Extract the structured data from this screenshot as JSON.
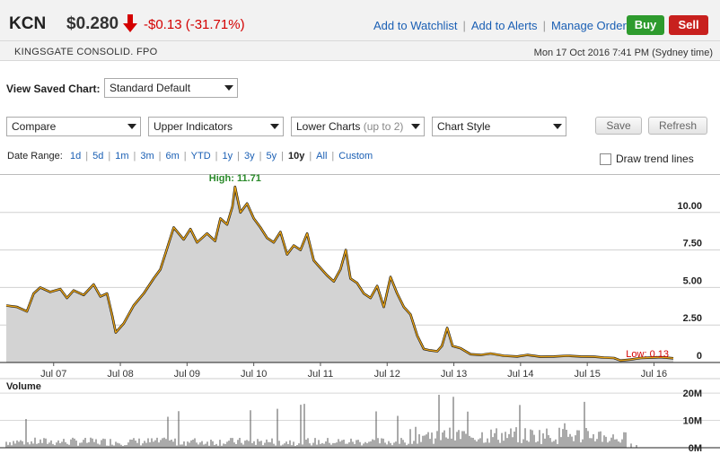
{
  "quote": {
    "ticker": "KCN",
    "price": "$0.280",
    "change": "-$0.13 (-31.71%)",
    "company": "KINGSGATE CONSOLID. FPO",
    "datetime": "Mon 17 Oct 2016 7:41 PM (Sydney time)"
  },
  "header_links": [
    "Add to Watchlist",
    "Add to Alerts",
    "Manage Orders"
  ],
  "actions": {
    "buy": "Buy",
    "sell": "Sell"
  },
  "saved_chart": {
    "label": "View Saved Chart:",
    "value": "Standard Default"
  },
  "controls": {
    "compare": "Compare",
    "upper_indicators": "Upper Indicators",
    "lower_charts": "Lower Charts",
    "lower_charts_hint": "(up to 2)",
    "chart_style": "Chart Style",
    "save": "Save",
    "refresh": "Refresh"
  },
  "date_range": {
    "label": "Date Range:",
    "options": [
      "1d",
      "5d",
      "1m",
      "3m",
      "6m",
      "YTD",
      "1y",
      "3y",
      "5y",
      "10y",
      "All",
      "Custom"
    ],
    "selected": "10y"
  },
  "trend_lines_label": "Draw trend lines",
  "volume_label": "Volume",
  "chart_data": [
    {
      "type": "area",
      "title": "",
      "x_start_year": 2006.79,
      "x_end_year": 2016.79,
      "x_tick_labels": [
        "Jul 07",
        "Jul 08",
        "Jul 09",
        "Jul 10",
        "Jul 11",
        "Jul 12",
        "Jul 13",
        "Jul 14",
        "Jul 15",
        "Jul 16"
      ],
      "y_ticks": [
        0,
        2.5,
        5.0,
        7.5,
        10.0
      ],
      "y_tick_labels": [
        "0",
        "2.50",
        "5.00",
        "7.50",
        "10.00"
      ],
      "ylim": [
        0,
        12.2
      ],
      "high_label": "High: 11.71",
      "low_label": "Low: 0.13",
      "line_color": "#e8a317",
      "fill_color": "#d3d3d3",
      "series": [
        {
          "values": [
            [
              2006.79,
              3.8
            ],
            [
              2006.95,
              3.7
            ],
            [
              2007.1,
              3.4
            ],
            [
              2007.2,
              4.6
            ],
            [
              2007.3,
              5.0
            ],
            [
              2007.45,
              4.7
            ],
            [
              2007.6,
              4.9
            ],
            [
              2007.7,
              4.3
            ],
            [
              2007.8,
              4.8
            ],
            [
              2007.95,
              4.5
            ],
            [
              2008.1,
              5.2
            ],
            [
              2008.2,
              4.4
            ],
            [
              2008.3,
              4.6
            ],
            [
              2008.38,
              3.1
            ],
            [
              2008.43,
              2.0
            ],
            [
              2008.55,
              2.6
            ],
            [
              2008.7,
              3.8
            ],
            [
              2008.85,
              4.6
            ],
            [
              2009.0,
              5.6
            ],
            [
              2009.1,
              6.2
            ],
            [
              2009.2,
              7.6
            ],
            [
              2009.3,
              9.0
            ],
            [
              2009.45,
              8.2
            ],
            [
              2009.55,
              8.9
            ],
            [
              2009.65,
              8.0
            ],
            [
              2009.8,
              8.6
            ],
            [
              2009.92,
              8.1
            ],
            [
              2010.0,
              9.6
            ],
            [
              2010.1,
              9.2
            ],
            [
              2010.18,
              10.4
            ],
            [
              2010.22,
              11.71
            ],
            [
              2010.3,
              10.0
            ],
            [
              2010.4,
              10.6
            ],
            [
              2010.5,
              9.6
            ],
            [
              2010.6,
              9.0
            ],
            [
              2010.7,
              8.3
            ],
            [
              2010.8,
              8.0
            ],
            [
              2010.9,
              8.7
            ],
            [
              2011.0,
              7.2
            ],
            [
              2011.1,
              7.8
            ],
            [
              2011.2,
              7.5
            ],
            [
              2011.3,
              8.6
            ],
            [
              2011.4,
              6.8
            ],
            [
              2011.5,
              6.3
            ],
            [
              2011.6,
              5.8
            ],
            [
              2011.7,
              5.4
            ],
            [
              2011.8,
              6.2
            ],
            [
              2011.88,
              7.5
            ],
            [
              2011.95,
              5.6
            ],
            [
              2012.05,
              5.3
            ],
            [
              2012.15,
              4.6
            ],
            [
              2012.25,
              4.3
            ],
            [
              2012.35,
              5.1
            ],
            [
              2012.45,
              3.7
            ],
            [
              2012.55,
              5.7
            ],
            [
              2012.65,
              4.6
            ],
            [
              2012.75,
              3.7
            ],
            [
              2012.85,
              3.2
            ],
            [
              2012.95,
              1.8
            ],
            [
              2013.05,
              0.9
            ],
            [
              2013.15,
              0.8
            ],
            [
              2013.25,
              0.75
            ],
            [
              2013.32,
              1.1
            ],
            [
              2013.4,
              2.3
            ],
            [
              2013.48,
              1.1
            ],
            [
              2013.6,
              0.95
            ],
            [
              2013.75,
              0.55
            ],
            [
              2013.9,
              0.5
            ],
            [
              2014.05,
              0.6
            ],
            [
              2014.25,
              0.45
            ],
            [
              2014.45,
              0.4
            ],
            [
              2014.6,
              0.5
            ],
            [
              2014.8,
              0.38
            ],
            [
              2015.0,
              0.4
            ],
            [
              2015.2,
              0.45
            ],
            [
              2015.4,
              0.4
            ],
            [
              2015.6,
              0.38
            ],
            [
              2015.75,
              0.33
            ],
            [
              2015.9,
              0.3
            ],
            [
              2016.0,
              0.13
            ],
            [
              2016.15,
              0.2
            ],
            [
              2016.3,
              0.3
            ],
            [
              2016.45,
              0.32
            ],
            [
              2016.6,
              0.35
            ],
            [
              2016.79,
              0.28
            ]
          ]
        }
      ]
    },
    {
      "type": "bar",
      "title": "Volume",
      "y_tick_labels": [
        "20M",
        "10M",
        "0M"
      ],
      "ylim": [
        0,
        22
      ],
      "unit": "M",
      "bar_color": "#555555",
      "note": "daily volume bars across the same date axis"
    }
  ]
}
